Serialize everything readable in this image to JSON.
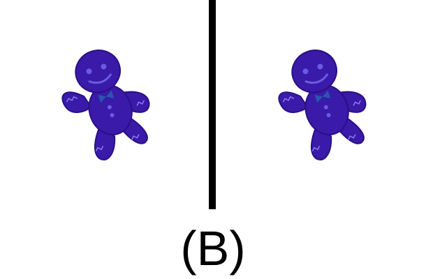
{
  "caption": "(B)",
  "panels": [
    {
      "icon": "gingerbread-man-icon",
      "color": "#3a1aa8"
    },
    {
      "icon": "gingerbread-man-icon",
      "color": "#3a1aa8"
    }
  ],
  "colors": {
    "background": "#ffffff",
    "divider": "#000000",
    "figure_body": "#3a1aa8",
    "figure_edge": "#2a0f86",
    "figure_highlight": "#6a5ce0",
    "figure_bow": "#2a56b0"
  }
}
